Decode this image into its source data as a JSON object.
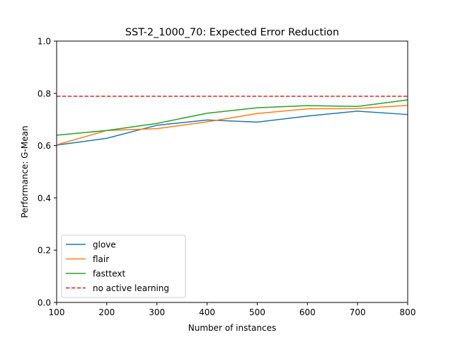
{
  "chart_data": {
    "type": "line",
    "title": "SST-2_1000_70: Expected Error Reduction",
    "xlabel": "Number of instances",
    "ylabel": "Performance: G-Mean",
    "xlim": [
      100,
      800
    ],
    "ylim": [
      0.0,
      1.0
    ],
    "x_ticks": [
      "100",
      "200",
      "300",
      "400",
      "500",
      "600",
      "700",
      "800"
    ],
    "y_ticks": [
      "0.0",
      "0.2",
      "0.4",
      "0.6",
      "0.8",
      "1.0"
    ],
    "grid": false,
    "legend_position": "lower-left",
    "x": [
      100,
      200,
      300,
      400,
      500,
      600,
      700,
      800
    ],
    "series": [
      {
        "name": "glove",
        "color": "#1f77b4",
        "style": "solid",
        "values": [
          0.602,
          0.628,
          0.678,
          0.698,
          0.69,
          0.713,
          0.732,
          0.719
        ]
      },
      {
        "name": "flair",
        "color": "#ff7f0e",
        "style": "solid",
        "values": [
          0.603,
          0.658,
          0.665,
          0.691,
          0.723,
          0.741,
          0.742,
          0.754
        ]
      },
      {
        "name": "fasttext",
        "color": "#2ca02c",
        "style": "solid",
        "values": [
          0.64,
          0.658,
          0.685,
          0.724,
          0.745,
          0.753,
          0.75,
          0.775
        ]
      }
    ],
    "baseline": {
      "name": "no active learning",
      "color": "#d62728",
      "style": "dashed",
      "value": 0.789
    }
  }
}
